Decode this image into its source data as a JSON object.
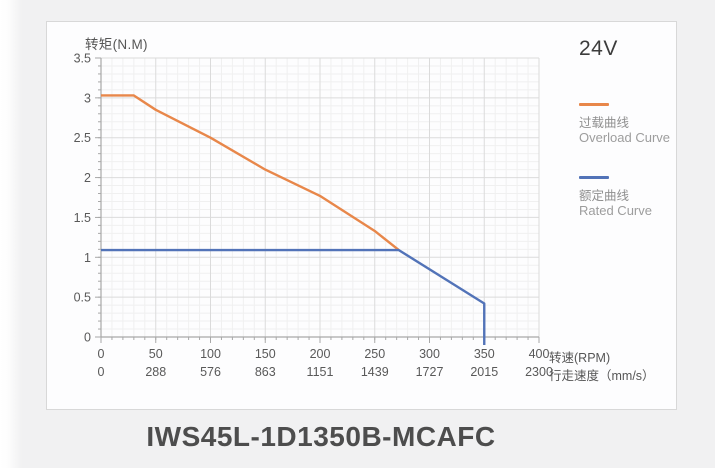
{
  "page": {
    "model_title": "IWS45L-1D1350B-MCAFC",
    "voltage_label": "24V"
  },
  "legend": {
    "overload": {
      "zh": "过载曲线",
      "en": "Overload Curve",
      "color": "#E8874A"
    },
    "rated": {
      "zh": "额定曲线",
      "en": "Rated Curve",
      "color": "#5273B8"
    }
  },
  "chart_data": {
    "type": "line",
    "y_axis_label": "转矩(N.M)",
    "x_axis_label_rpm": "转速(RPM)",
    "x_axis_label_speed": "行走速度（mm/s）",
    "xlim": [
      0,
      400
    ],
    "ylim": [
      0,
      3.5
    ],
    "x_ticks_rpm": [
      0,
      50,
      100,
      150,
      200,
      250,
      300,
      350,
      400
    ],
    "x_ticks_speed": [
      0,
      288,
      576,
      863,
      1151,
      1439,
      1727,
      2015,
      2300
    ],
    "y_ticks": [
      0,
      0.5,
      1,
      1.5,
      2,
      2.5,
      3,
      3.5
    ],
    "minor_step_x": 10,
    "minor_step_y": 0.1,
    "grid": "on",
    "legend_position": "right",
    "series": [
      {
        "name": "Overload Curve",
        "color": "#E8874A",
        "points": [
          [
            0,
            3.03
          ],
          [
            30,
            3.03
          ],
          [
            50,
            2.85
          ],
          [
            100,
            2.5
          ],
          [
            150,
            2.1
          ],
          [
            200,
            1.77
          ],
          [
            250,
            1.33
          ],
          [
            272,
            1.09
          ]
        ]
      },
      {
        "name": "Rated Curve",
        "color": "#5273B8",
        "points": [
          [
            0,
            1.09
          ],
          [
            272,
            1.09
          ],
          [
            350,
            0.42
          ],
          [
            350,
            -0.1
          ]
        ]
      }
    ],
    "colors": {
      "grid_major": "#dbdbdb",
      "grid_minor": "#f0f0f0",
      "axis": "#a8a8a8",
      "tick_text": "#595959"
    }
  }
}
